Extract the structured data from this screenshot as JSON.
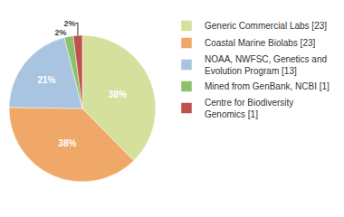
{
  "chart_data": {
    "type": "pie",
    "categories": [
      "Generic Commercial Labs [23]",
      "Coastal Marine Biolabs [23]",
      "NOAA, NWFSC, Genetics and\nEvolution Program [13]",
      "Mined from GenBank, NCBI [1]",
      "Centre for Biodiversity\nGenomics [1]"
    ],
    "values": [
      38,
      38,
      21,
      2,
      2
    ],
    "value_labels": [
      "38%",
      "38%",
      "21%",
      "2%",
      "2%"
    ],
    "colors": [
      "#d4e09b",
      "#f0a868",
      "#a8c4e0",
      "#8dc06a",
      "#c0504d"
    ],
    "data_labels": true,
    "legend": "right"
  }
}
